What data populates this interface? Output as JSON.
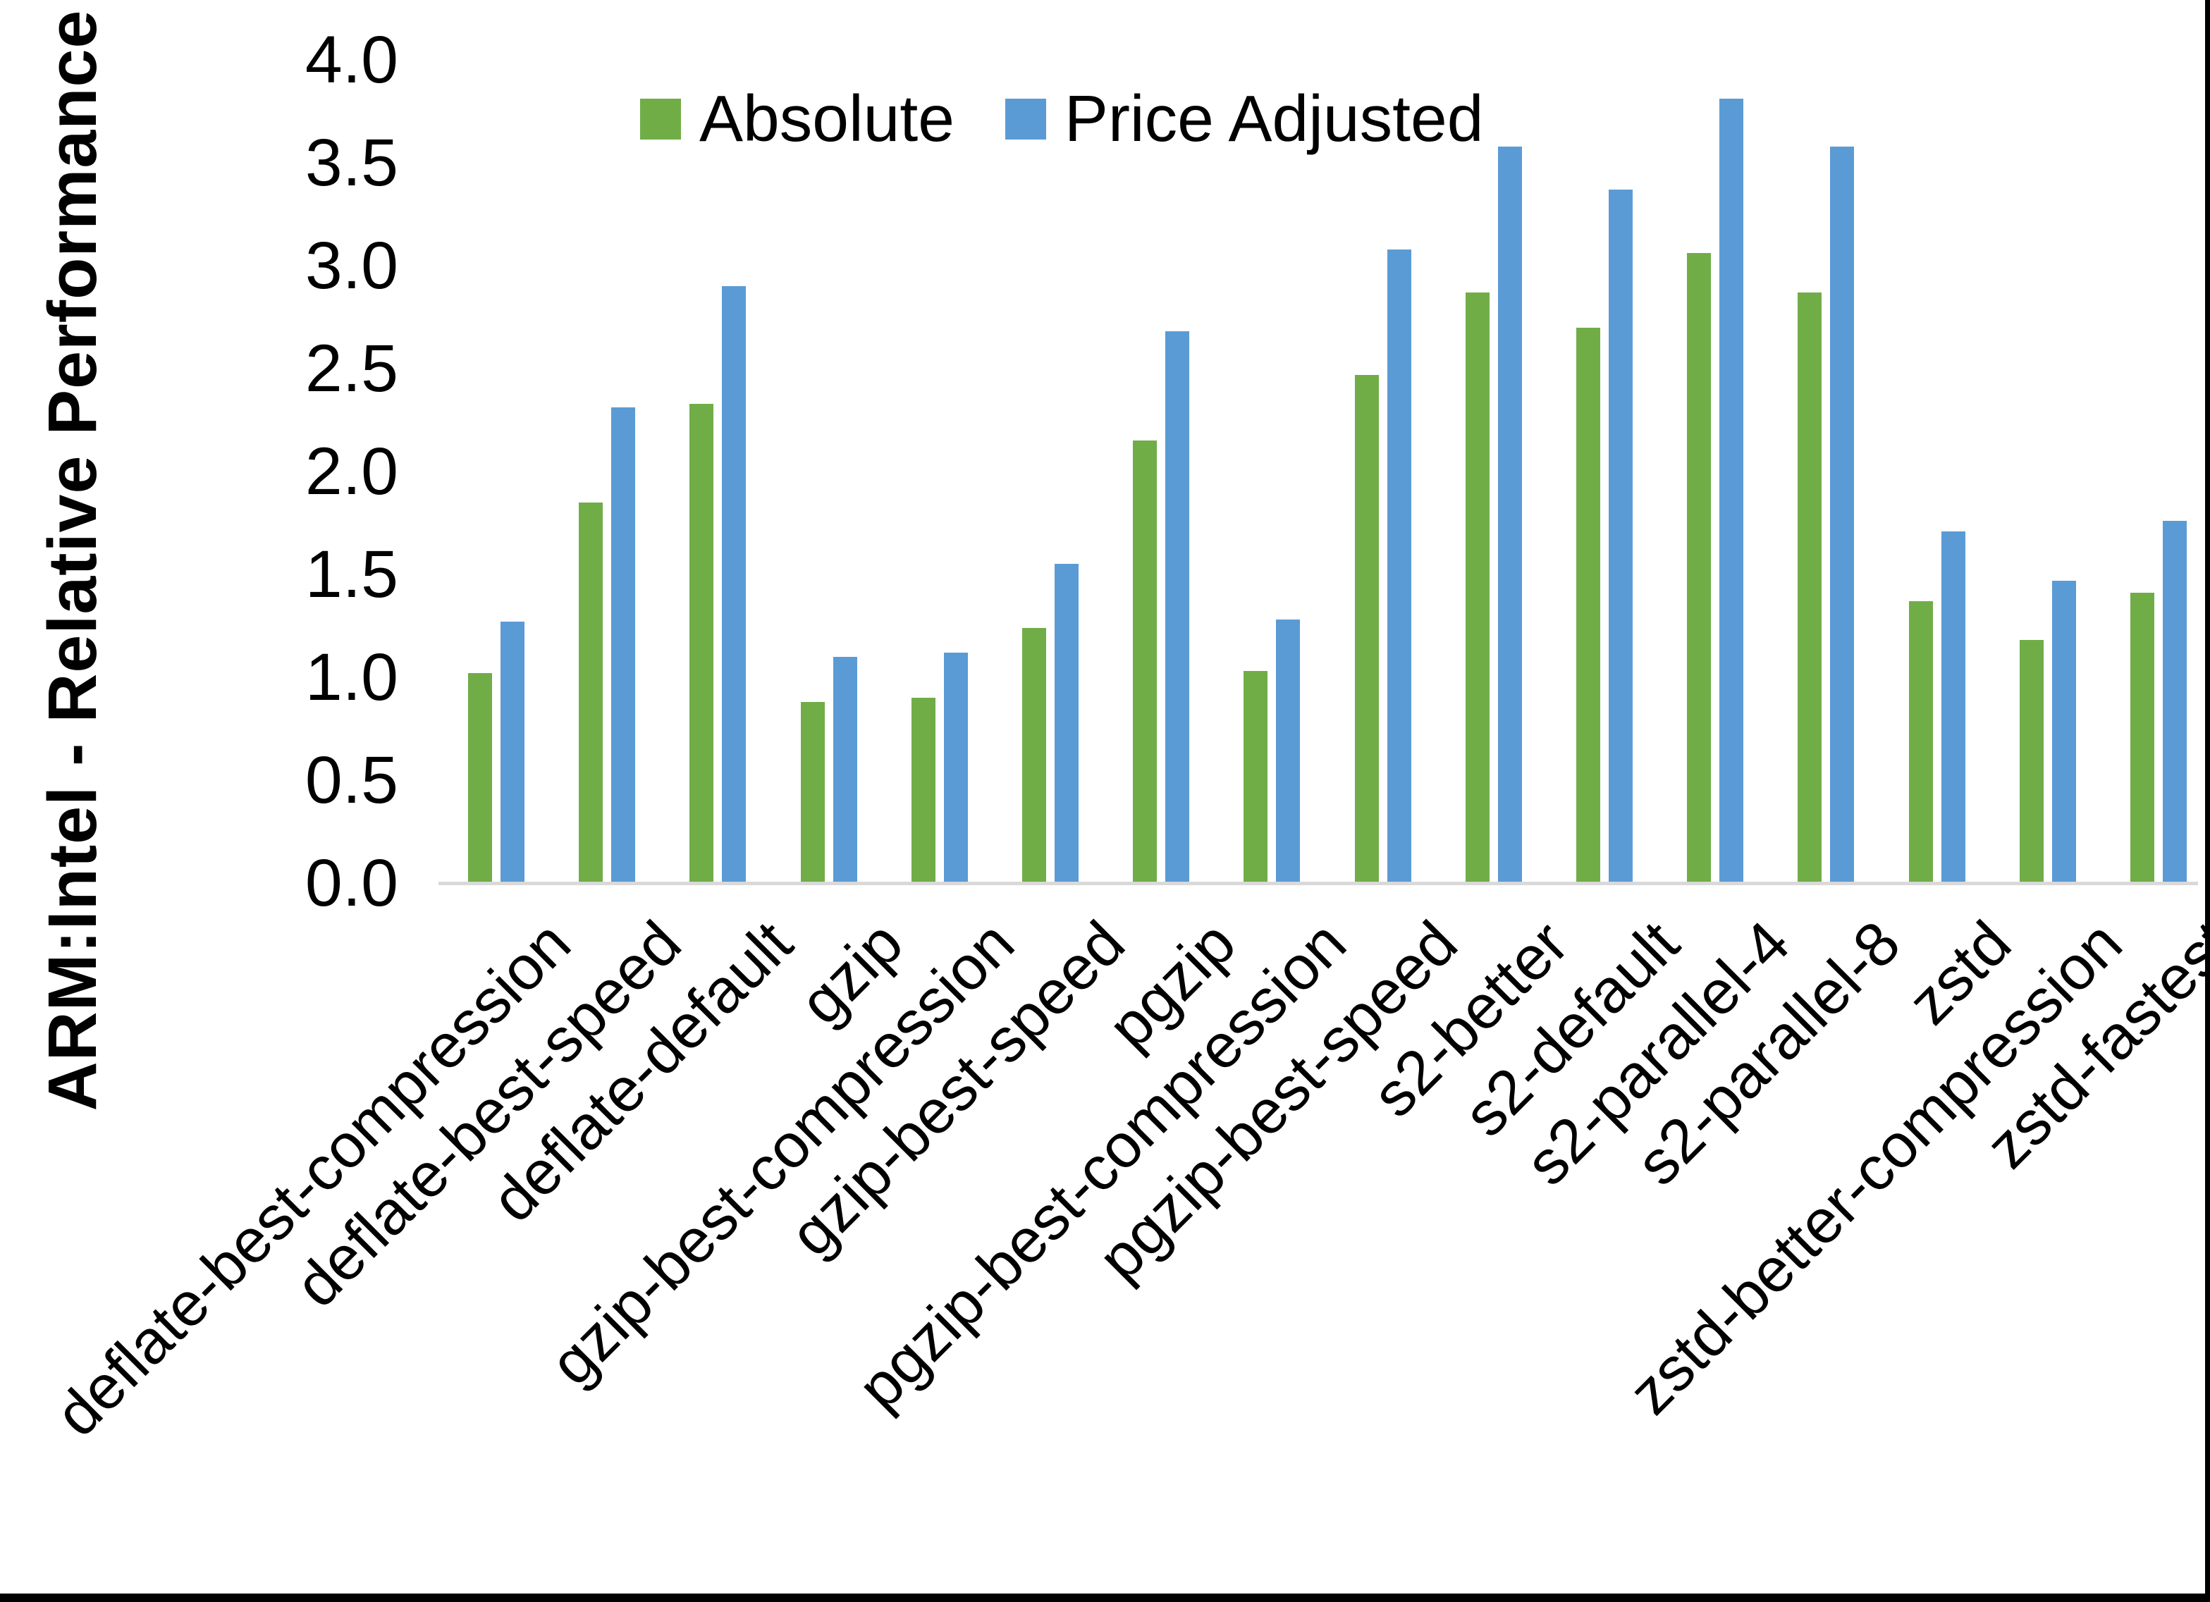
{
  "figure": {
    "background": "#FFFFFF",
    "border_color": "#000000",
    "axis_line_color": "#D9D9D9",
    "text_color": "#000000"
  },
  "legend": {
    "items": [
      {
        "label": "Absolute",
        "color": "#70AD47"
      },
      {
        "label": "Price Adjusted",
        "color": "#5B9BD5"
      }
    ]
  },
  "chart_data": {
    "type": "bar",
    "title": "",
    "xlabel": "",
    "ylabel": "ARM:Intel - Relative Performance",
    "ylim": [
      0.0,
      4.0
    ],
    "ytick_step": 0.5,
    "ytick_labels": [
      "0.0",
      "0.5",
      "1.0",
      "1.5",
      "2.0",
      "2.5",
      "3.0",
      "3.5",
      "4.0"
    ],
    "grid": false,
    "legend_position": "top-center",
    "categories": [
      "deflate-best-compression",
      "deflate-best-speed",
      "deflate-default",
      "gzip",
      "gzip-best-compression",
      "gzip-best-speed",
      "pgzip",
      "pgzip-best-compression",
      "pgzip-best-speed",
      "s2-better",
      "s2-default",
      "s2-parallel-4",
      "s2-parallel-8",
      "zstd",
      "zstd-better-compression",
      "zstd-fastest"
    ],
    "series": [
      {
        "name": "Absolute",
        "color": "#70AD47",
        "values": [
          1.02,
          1.85,
          2.33,
          0.88,
          0.9,
          1.24,
          2.15,
          1.03,
          2.47,
          2.87,
          2.7,
          3.06,
          2.87,
          1.37,
          1.18,
          1.41
        ]
      },
      {
        "name": "Price Adjusted",
        "color": "#5B9BD5",
        "values": [
          1.27,
          2.31,
          2.9,
          1.1,
          1.12,
          1.55,
          2.68,
          1.28,
          3.08,
          3.58,
          3.37,
          3.81,
          3.58,
          1.71,
          1.47,
          1.76
        ]
      }
    ]
  }
}
